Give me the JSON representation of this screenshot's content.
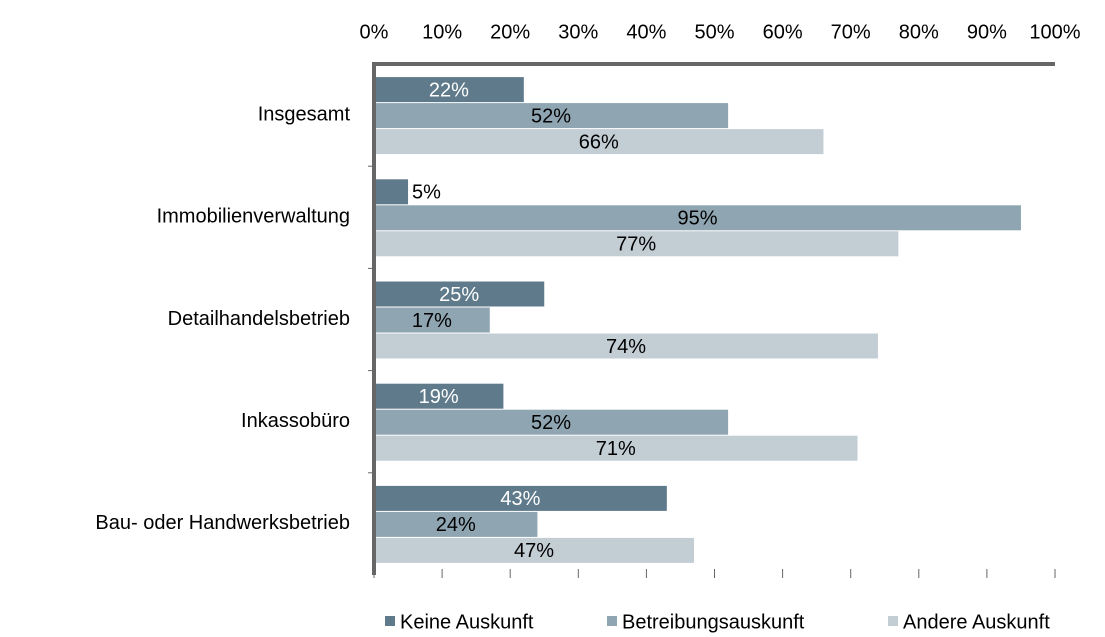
{
  "chart_data": {
    "type": "bar",
    "orientation": "horizontal",
    "categories": [
      "Insgesamt",
      "Immobilienverwaltung",
      "Detailhandelsbetrieb",
      "Inkassobüro",
      "Bau- oder Handwerksbetrieb"
    ],
    "series": [
      {
        "name": "Keine Auskunft",
        "color": "#5f7a8a",
        "values": [
          22,
          5,
          25,
          19,
          43
        ],
        "value_labels": [
          "22%",
          "5%",
          "25%",
          "19%",
          "43%"
        ]
      },
      {
        "name": "Betreibungsauskunft",
        "color": "#8fa5b2",
        "values": [
          52,
          95,
          17,
          52,
          24
        ],
        "value_labels": [
          "52%",
          "95%",
          "17%",
          "52%",
          "24%"
        ]
      },
      {
        "name": "Andere Auskunft",
        "color": "#c3cdd4",
        "values": [
          66,
          77,
          74,
          71,
          47
        ],
        "value_labels": [
          "66%",
          "77%",
          "74%",
          "71%",
          "47%"
        ]
      }
    ],
    "xlim": [
      0,
      100
    ],
    "xticks": [
      {
        "value": 0,
        "label": "0%"
      },
      {
        "value": 10,
        "label": "10%"
      },
      {
        "value": 20,
        "label": "20%"
      },
      {
        "value": 30,
        "label": "30%"
      },
      {
        "value": 40,
        "label": "40%"
      },
      {
        "value": 50,
        "label": "50%"
      },
      {
        "value": 60,
        "label": "60%"
      },
      {
        "value": 70,
        "label": "70%"
      },
      {
        "value": 80,
        "label": "80%"
      },
      {
        "value": 90,
        "label": "90%"
      },
      {
        "value": 100,
        "label": "100%"
      }
    ],
    "legend": "bottom"
  }
}
